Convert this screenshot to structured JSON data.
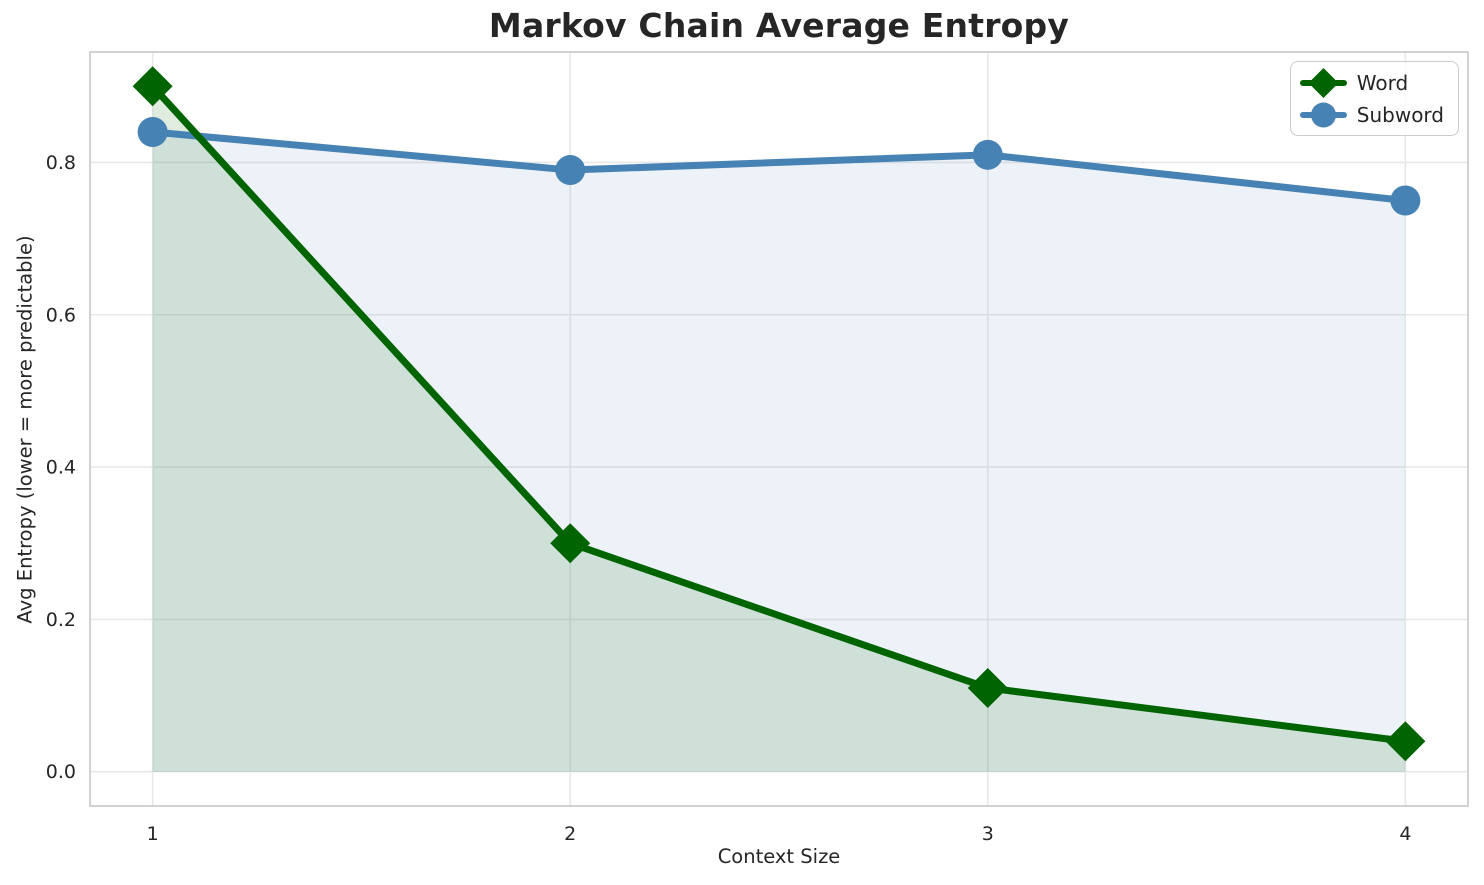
{
  "chart_data": {
    "type": "line",
    "title": "Markov Chain Average Entropy",
    "xlabel": "Context Size",
    "ylabel": "Avg Entropy (lower = more predictable)",
    "x": [
      1,
      2,
      3,
      4
    ],
    "series": [
      {
        "name": "Subword",
        "values": [
          0.84,
          0.79,
          0.81,
          0.75
        ],
        "color": "#4682B4",
        "marker": "circle",
        "fill_opacity": 0.1
      },
      {
        "name": "Word",
        "values": [
          0.9,
          0.3,
          0.11,
          0.04
        ],
        "color": "#006400",
        "marker": "diamond",
        "fill_opacity": 0.12
      }
    ],
    "fill_to_zero": true,
    "legend_order": [
      "Word",
      "Subword"
    ],
    "legend_position": "upper right",
    "xticks": [
      1,
      2,
      3,
      4
    ],
    "xtick_labels": [
      "1",
      "2",
      "3",
      "4"
    ],
    "yticks": [
      0.0,
      0.2,
      0.4,
      0.6,
      0.8
    ],
    "ytick_labels": [
      "0.0",
      "0.2",
      "0.4",
      "0.6",
      "0.8"
    ],
    "xlim": [
      0.85,
      4.15
    ],
    "ylim": [
      -0.045,
      0.945
    ],
    "grid": true,
    "colors": {
      "text": "#262626",
      "grid": "#e8e8e8",
      "plot_border": "#cdcdcd",
      "background": "#ffffff",
      "word_green": "#006400",
      "subword_blue": "#4682B4"
    }
  }
}
